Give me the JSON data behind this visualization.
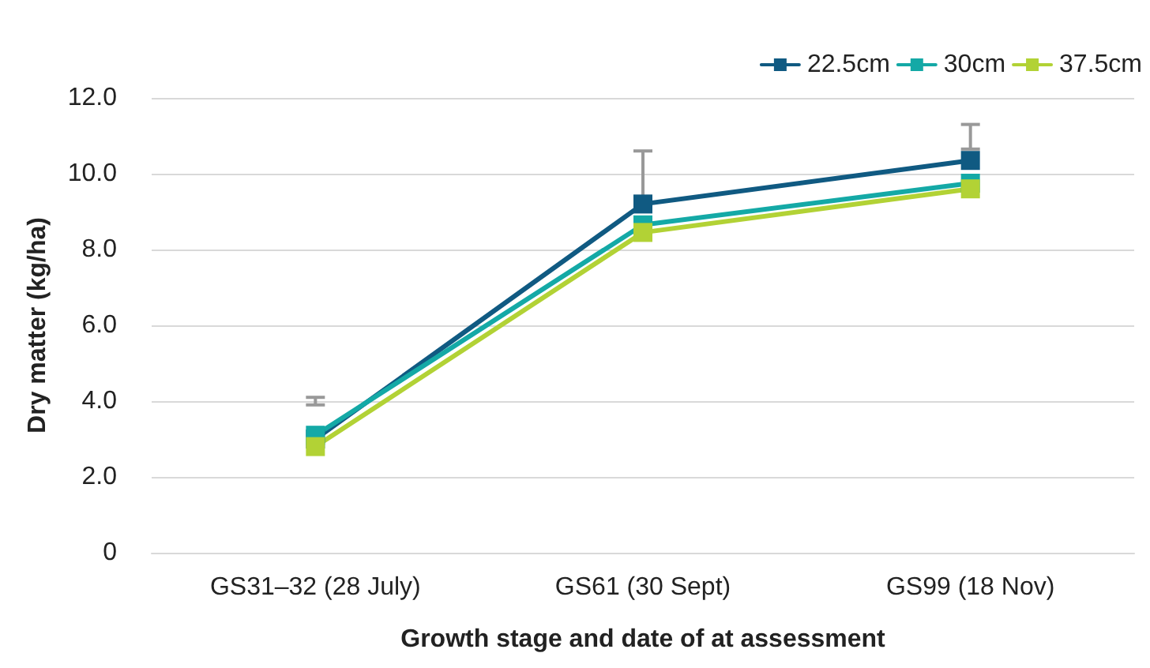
{
  "chart_data": {
    "type": "line",
    "xlabel": "Growth stage and date of at assessment",
    "ylabel": "Dry matter (kg/ha)",
    "categories": [
      "GS31–32 (28 July)",
      "GS61 (30 Sept)",
      "GS99 (18 Nov)"
    ],
    "series": [
      {
        "name": "22.5cm",
        "color": "#105a82",
        "values": [
          3.0,
          9.2,
          10.35
        ],
        "errors": [
          [
            3.9,
            4.1
          ],
          [
            9.4,
            10.6
          ],
          [
            10.65,
            11.3
          ]
        ]
      },
      {
        "name": "30cm",
        "color": "#14a9a6",
        "values": [
          3.1,
          8.65,
          9.75
        ]
      },
      {
        "name": "37.5cm",
        "color": "#b2d235",
        "values": [
          2.8,
          8.45,
          9.6
        ]
      }
    ],
    "ylim": [
      0,
      12
    ],
    "yticks": [
      {
        "value": 0,
        "label": "0"
      },
      {
        "value": 2,
        "label": "2.0"
      },
      {
        "value": 4,
        "label": "4.0"
      },
      {
        "value": 6,
        "label": "6.0"
      },
      {
        "value": 8,
        "label": "8.0"
      },
      {
        "value": 10,
        "label": "10.0"
      },
      {
        "value": 12,
        "label": "12.0"
      }
    ],
    "grid": "y",
    "legend": "top right",
    "marker": "square",
    "line_style": "solid"
  }
}
